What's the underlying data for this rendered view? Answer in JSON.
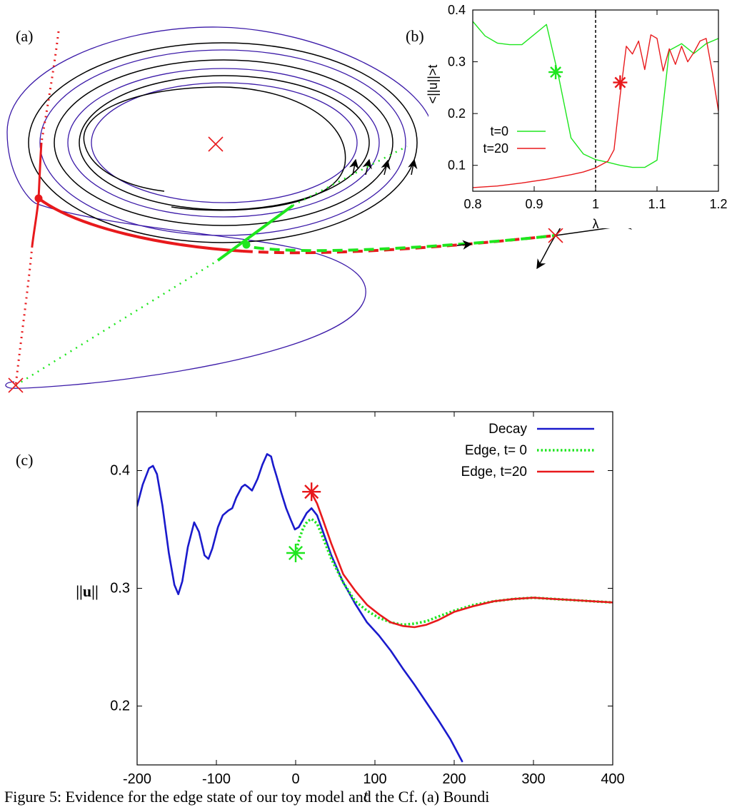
{
  "panel_labels": {
    "a": "(a)",
    "b": "(b)",
    "c": "(c)"
  },
  "caption": "Figure 5: Evidence for the edge state of our toy model and the Cf. (a) Boundi",
  "colors": {
    "red": "#e8191c",
    "green": "#1ee61e",
    "blue": "#1a1acc",
    "black": "#000000",
    "purple": "#3b1aa8"
  },
  "chart_data": [
    {
      "type": "diagram",
      "panel": "(a)",
      "description_marks": [
        "spiral-orbits",
        "red-stable-manifold",
        "green-manifold",
        "fixed-points",
        "flow-arrows"
      ]
    },
    {
      "type": "line",
      "panel": "(b)",
      "xlabel": "λ",
      "ylabel": "<||u||>t",
      "xlim": [
        0.8,
        1.2
      ],
      "ylim": [
        0.05,
        0.4
      ],
      "xticks": [
        "0.8",
        "0.9",
        "1",
        "1.1",
        "1.2"
      ],
      "yticks": [
        "0.1",
        "0.2",
        "0.3",
        "0.4"
      ],
      "legend_placement": "center-left",
      "threshold_line": 1.0,
      "series": [
        {
          "name": "t=0",
          "color": "#1ee61e",
          "x": [
            0.8,
            0.82,
            0.84,
            0.86,
            0.88,
            0.92,
            0.94,
            0.96,
            0.98,
            1.0,
            1.02,
            1.04,
            1.06,
            1.08,
            1.1,
            1.12,
            1.14,
            1.16,
            1.18,
            1.2
          ],
          "y": [
            0.378,
            0.35,
            0.336,
            0.333,
            0.333,
            0.372,
            0.27,
            0.153,
            0.122,
            0.111,
            0.106,
            0.1,
            0.096,
            0.096,
            0.11,
            0.322,
            0.335,
            0.316,
            0.335,
            0.345
          ]
        },
        {
          "name": "t=20",
          "color": "#e8191c",
          "x": [
            0.8,
            0.84,
            0.88,
            0.92,
            0.96,
            0.98,
            1.0,
            1.02,
            1.03,
            1.04,
            1.05,
            1.06,
            1.07,
            1.08,
            1.09,
            1.1,
            1.11,
            1.12,
            1.13,
            1.14,
            1.15,
            1.16,
            1.17,
            1.18,
            1.19,
            1.2
          ],
          "y": [
            0.057,
            0.06,
            0.066,
            0.073,
            0.082,
            0.087,
            0.095,
            0.108,
            0.13,
            0.235,
            0.33,
            0.315,
            0.34,
            0.285,
            0.352,
            0.345,
            0.282,
            0.325,
            0.295,
            0.33,
            0.3,
            0.318,
            0.34,
            0.345,
            0.28,
            0.205
          ]
        }
      ],
      "markers": [
        {
          "x": 0.935,
          "y": 0.28,
          "color": "#1ee61e"
        },
        {
          "x": 1.04,
          "y": 0.26,
          "color": "#e8191c"
        }
      ]
    },
    {
      "type": "line",
      "panel": "(c)",
      "xlabel": "t",
      "ylabel": "||u||",
      "xlim": [
        -200,
        400
      ],
      "ylim": [
        0.15,
        0.45
      ],
      "xticks": [
        "-200",
        "-100",
        "0",
        "100",
        "200",
        "300",
        "400"
      ],
      "yticks": [
        "0.2",
        "0.3",
        "0.4"
      ],
      "legend_placement": "top-right",
      "series": [
        {
          "name": "Decay",
          "color": "#1a1acc",
          "style": "solid",
          "x": [
            -200,
            -193,
            -185,
            -180,
            -175,
            -168,
            -160,
            -153,
            -148,
            -143,
            -136,
            -128,
            -122,
            -115,
            -110,
            -105,
            -98,
            -92,
            -85,
            -80,
            -75,
            -68,
            -64,
            -60,
            -55,
            -48,
            -42,
            -36,
            -31,
            -28,
            -24,
            -18,
            -12,
            -6,
            -1,
            4,
            9,
            14,
            20,
            27,
            35,
            45,
            60,
            75,
            90,
            105,
            120,
            135,
            150,
            165,
            180,
            195,
            210
          ],
          "y": [
            0.37,
            0.388,
            0.402,
            0.404,
            0.397,
            0.37,
            0.33,
            0.303,
            0.295,
            0.306,
            0.335,
            0.356,
            0.348,
            0.328,
            0.325,
            0.334,
            0.352,
            0.362,
            0.366,
            0.368,
            0.377,
            0.386,
            0.388,
            0.386,
            0.383,
            0.393,
            0.405,
            0.414,
            0.412,
            0.404,
            0.395,
            0.381,
            0.368,
            0.358,
            0.35,
            0.352,
            0.358,
            0.364,
            0.368,
            0.362,
            0.347,
            0.328,
            0.305,
            0.287,
            0.271,
            0.26,
            0.247,
            0.232,
            0.218,
            0.203,
            0.188,
            0.172,
            0.153
          ]
        },
        {
          "name": "Edge, t=  0",
          "color": "#1ee61e",
          "style": "dotted",
          "x": [
            0,
            5,
            10,
            15,
            20,
            27,
            35,
            45,
            60,
            75,
            90,
            105,
            120,
            135,
            150,
            165,
            180,
            200,
            225,
            250,
            275,
            300,
            325,
            350,
            375,
            400
          ],
          "y": [
            0.33,
            0.343,
            0.352,
            0.357,
            0.359,
            0.355,
            0.342,
            0.325,
            0.305,
            0.289,
            0.281,
            0.275,
            0.271,
            0.269,
            0.27,
            0.272,
            0.276,
            0.281,
            0.286,
            0.289,
            0.291,
            0.292,
            0.291,
            0.29,
            0.289,
            0.288
          ]
        },
        {
          "name": "Edge, t=20",
          "color": "#e8191c",
          "style": "solid",
          "x": [
            20,
            27,
            35,
            45,
            60,
            75,
            90,
            105,
            120,
            135,
            150,
            165,
            180,
            200,
            225,
            250,
            275,
            300,
            325,
            350,
            375,
            400
          ],
          "y": [
            0.381,
            0.372,
            0.357,
            0.338,
            0.312,
            0.298,
            0.286,
            0.278,
            0.271,
            0.268,
            0.267,
            0.269,
            0.273,
            0.28,
            0.285,
            0.289,
            0.291,
            0.292,
            0.291,
            0.29,
            0.289,
            0.288
          ]
        }
      ],
      "markers": [
        {
          "x": 0,
          "y": 0.33,
          "color": "#1ee61e"
        },
        {
          "x": 20,
          "y": 0.382,
          "color": "#e8191c"
        }
      ]
    }
  ]
}
